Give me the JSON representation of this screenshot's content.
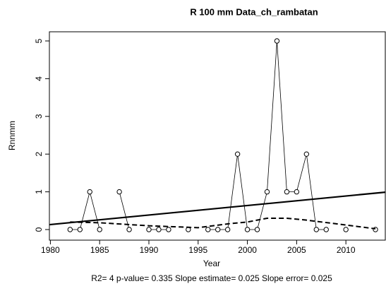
{
  "chart_data": {
    "type": "line",
    "title": "R  100  mm   Data_ch_rambatan",
    "x_label": "Year",
    "y_label": "Rnnmm",
    "subtitle": "R2= 4  p-value= 0.335  Slope estimate= 0.025  Slope error= 0.025",
    "xlim": [
      1979.9,
      2014
    ],
    "ylim": [
      -0.281,
      5.243
    ],
    "xticks": [
      1980,
      1985,
      1990,
      1995,
      2000,
      2005,
      2010
    ],
    "yticks": [
      0,
      1,
      2,
      3,
      4,
      5
    ],
    "series": [
      {
        "style": "points-line",
        "color": "#000000",
        "x": [
          1982,
          1983,
          1984,
          1985,
          1986,
          1987,
          1988,
          1989,
          1990,
          1991,
          1992,
          1993,
          1994,
          1995,
          1996,
          1997,
          1998,
          1999,
          2000,
          2001,
          2002,
          2003,
          2004,
          2005,
          2006,
          2007,
          2008,
          2009,
          2010,
          2011,
          2012,
          2013
        ],
        "values": [
          0,
          0,
          1,
          0,
          null,
          1,
          0,
          null,
          0,
          0,
          0,
          null,
          0,
          null,
          0,
          0,
          0,
          2,
          0,
          0,
          1,
          5,
          1,
          1,
          2,
          0,
          0,
          null,
          0,
          null,
          null,
          0
        ]
      },
      {
        "style": "solid",
        "color": "#000000",
        "x": [
          1979.9,
          2014
        ],
        "values": [
          0.13,
          0.99
        ]
      },
      {
        "style": "dashed",
        "color": "#000000",
        "x": [
          1982,
          1985,
          1990,
          1995,
          1998,
          2000,
          2002,
          2004,
          2006,
          2010,
          2013
        ],
        "values": [
          0.2,
          0.18,
          0.1,
          0.05,
          0.15,
          0.2,
          0.3,
          0.3,
          0.25,
          0.12,
          0.02
        ]
      }
    ]
  }
}
